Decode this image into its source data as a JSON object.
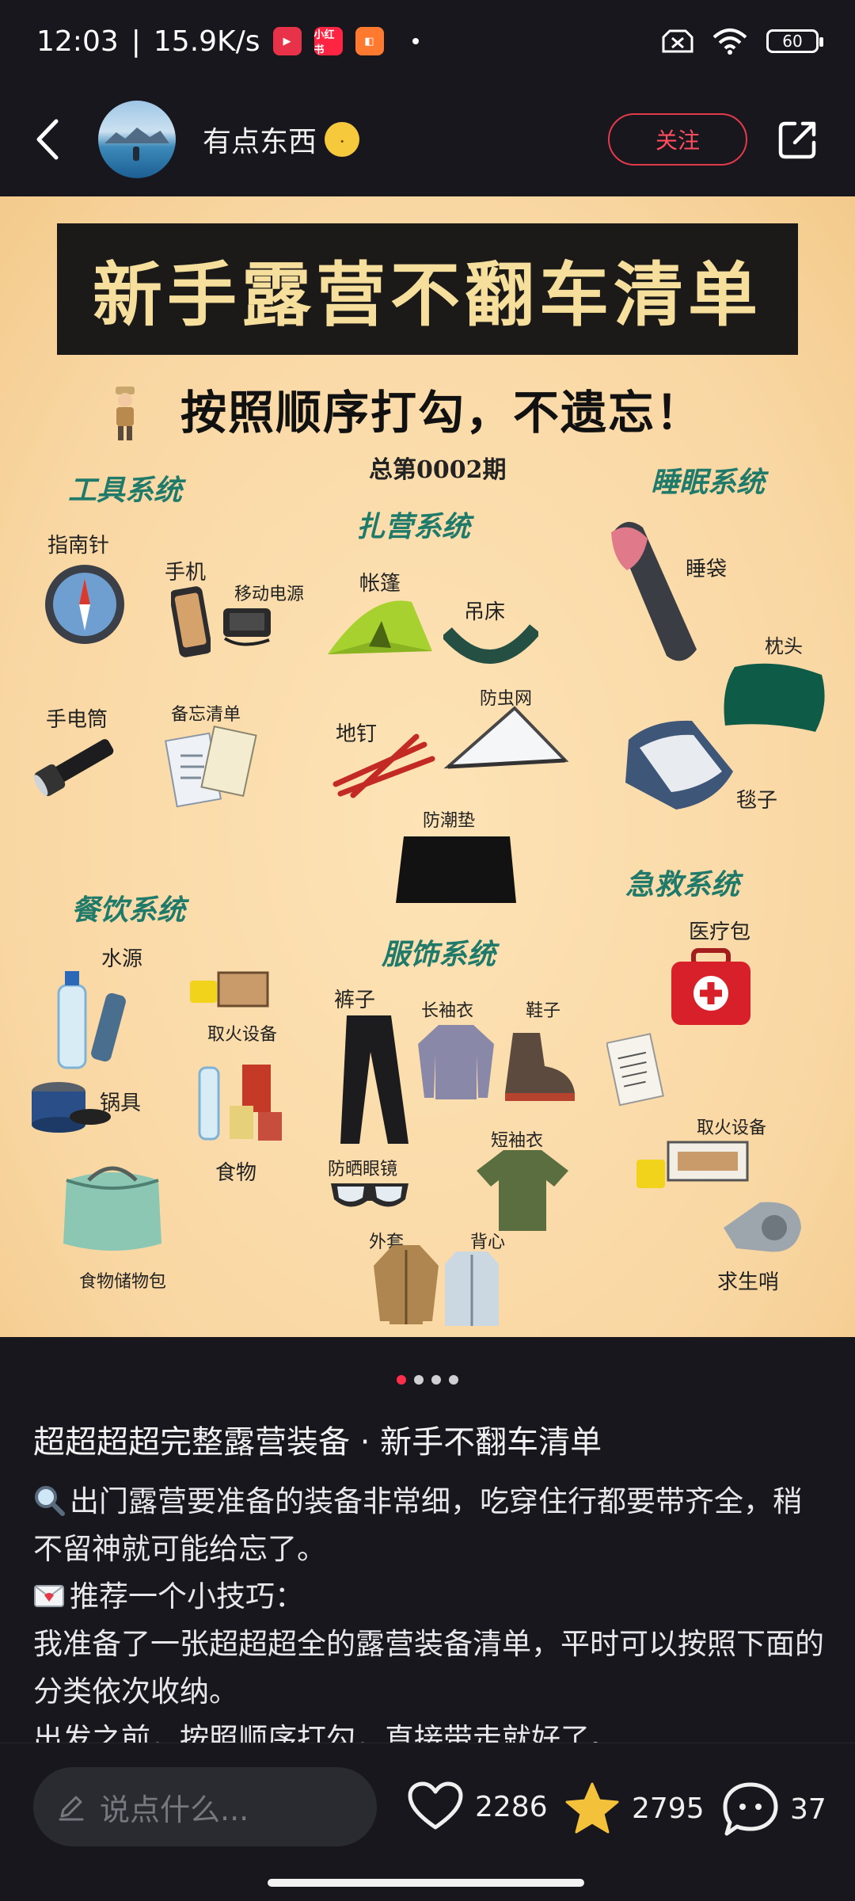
{
  "status_bar": {
    "time": "12:03",
    "separator": "|",
    "net_speed": "15.9K/s",
    "battery": "60",
    "badges": [
      "小红书"
    ]
  },
  "header": {
    "author_name": "有点东西",
    "follow_label": "关注"
  },
  "poster": {
    "title": "新手露营不翻车清单",
    "subtitle": "按照顺序打勾，不遗忘！",
    "issue": "总第0002期",
    "categories": {
      "tools": "工具系统",
      "camp": "扎营系统",
      "sleep": "睡眠系统",
      "food": "餐饮系统",
      "clothing": "服饰系统",
      "firstaid": "急救系统"
    },
    "items": {
      "compass": "指南针",
      "phone": "手机",
      "powerbank": "移动电源",
      "tent": "帐篷",
      "hammock": "吊床",
      "sleeping_bag": "睡袋",
      "pillow": "枕头",
      "flashlight": "手电筒",
      "checklist": "备忘清单",
      "stakes": "地钉",
      "mosquito_net": "防虫网",
      "blanket": "毯子",
      "moisture_mat": "防潮垫",
      "water": "水源",
      "fire_tools_1": "取火设备",
      "cookware": "锅具",
      "food": "食物",
      "food_bag": "食物储物包",
      "pants": "裤子",
      "long_sleeve": "长袖衣",
      "shoes": "鞋子",
      "short_sleeve": "短袖衣",
      "sunglasses": "防晒眼镜",
      "jacket": "外套",
      "vest": "背心",
      "medkit": "医疗包",
      "fire_tools_2": "取火设备",
      "whistle": "求生哨"
    }
  },
  "pagination": {
    "total": 4,
    "current": 1
  },
  "note": {
    "title": "超超超超完整露营装备 · 新手不翻车清单",
    "para1": "出门露营要准备的装备非常细，吃穿住行都要带齐全，稍不留神就可能给忘了。",
    "para2": "推荐一个小技巧：",
    "para3": "我准备了一张超超超全的露营装备清单，平时可以按照下面的分类依次收纳。",
    "para4": "出发之前，按照顺序打勾，直接带走就好了。"
  },
  "bottom_bar": {
    "comment_placeholder": "说点什么...",
    "likes": "2286",
    "stars": "2795",
    "comments": "37"
  },
  "colors": {
    "accent_red": "#ff2e4d",
    "star_yellow": "#f4c23a",
    "category_green": "#1f7a6a",
    "poster_bg": "#f9d7a3"
  }
}
